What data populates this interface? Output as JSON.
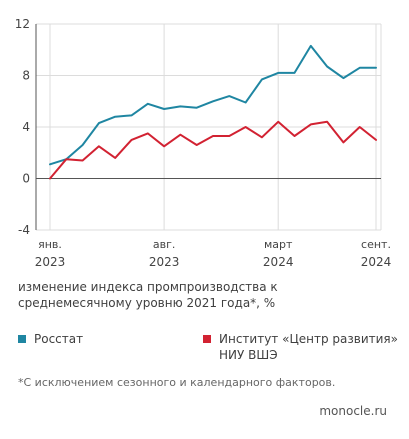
{
  "chart_data": {
    "type": "line",
    "ylim": [
      -4,
      12
    ],
    "y_ticks": [
      "12",
      "8",
      "4",
      "0",
      "-4"
    ],
    "y_tick_values": [
      12,
      8,
      4,
      0,
      -4
    ],
    "x_tick_labels": [
      {
        "month": "янв.",
        "year": "2023",
        "index": 0
      },
      {
        "month": "авг.",
        "year": "2023",
        "index": 7
      },
      {
        "month": "март",
        "year": "2024",
        "index": 14
      },
      {
        "month": "сент.",
        "year": "2024",
        "index": 20
      }
    ],
    "x": [
      "2023-01",
      "2023-02",
      "2023-03",
      "2023-04",
      "2023-05",
      "2023-06",
      "2023-07",
      "2023-08",
      "2023-09",
      "2023-10",
      "2023-11",
      "2023-12",
      "2024-01",
      "2024-02",
      "2024-03",
      "2024-04",
      "2024-05",
      "2024-06",
      "2024-07",
      "2024-08",
      "2024-09"
    ],
    "series": [
      {
        "name": "Росстат",
        "color": "#1f86a2",
        "values": [
          1.1,
          1.5,
          2.6,
          4.3,
          4.8,
          4.9,
          5.8,
          5.4,
          5.6,
          5.5,
          6.0,
          6.4,
          5.9,
          7.7,
          8.2,
          8.2,
          10.3,
          8.7,
          7.8,
          8.6,
          8.6
        ]
      },
      {
        "name": "Институт «Центр развития» НИУ ВШЭ",
        "color": "#d22232",
        "values": [
          0.0,
          1.5,
          1.4,
          2.5,
          1.6,
          3.0,
          3.5,
          2.5,
          3.4,
          2.6,
          3.3,
          3.3,
          4.0,
          3.2,
          4.4,
          3.3,
          4.2,
          4.4,
          2.8,
          4.0,
          3.0
        ]
      }
    ],
    "grid": "vertical-and-horizontal"
  },
  "caption": "изменение индекса промпроизводства к среднемесячному уровню 2021 года*, %",
  "legend": {
    "rosstat": {
      "label": "Росстат",
      "color": "#1f86a2"
    },
    "hse": {
      "label_line1": "Институт «Центр развития»",
      "label_line2": "НИУ ВШЭ",
      "color": "#d22232"
    }
  },
  "footnote": "*С исключением сезонного и календарного факторов.",
  "source": "monocle.ru"
}
